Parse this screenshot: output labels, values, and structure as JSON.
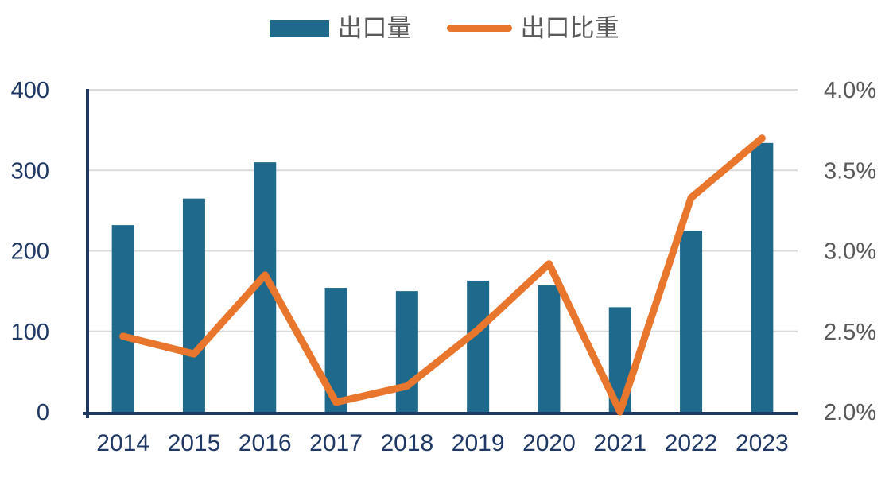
{
  "chart_data": {
    "type": "combo-bar-line",
    "title": "",
    "categories": [
      "2014",
      "2015",
      "2016",
      "2017",
      "2018",
      "2019",
      "2020",
      "2021",
      "2022",
      "2023"
    ],
    "series": [
      {
        "name": "出口量",
        "type": "bar",
        "axis": "left",
        "color": "#1F6A8C",
        "values": [
          232,
          265,
          310,
          154,
          150,
          163,
          157,
          130,
          225,
          334
        ]
      },
      {
        "name": "出口比重",
        "type": "line",
        "axis": "right",
        "color": "#E8762C",
        "values": [
          2.47,
          2.36,
          2.85,
          2.06,
          2.16,
          2.51,
          2.92,
          2.0,
          3.33,
          3.7
        ]
      }
    ],
    "left_axis": {
      "min": 0,
      "max": 400,
      "ticks": [
        0,
        100,
        200,
        300,
        400
      ],
      "tick_labels": [
        "0",
        "100",
        "200",
        "300",
        "400"
      ]
    },
    "right_axis": {
      "min": 2.0,
      "max": 4.0,
      "ticks": [
        2.0,
        2.5,
        3.0,
        3.5,
        4.0
      ],
      "tick_labels": [
        "2.0%",
        "2.5%",
        "3.0%",
        "3.5%",
        "4.0%"
      ]
    },
    "grid": true,
    "legend_position": "top"
  },
  "colors": {
    "bar_fill": "#1F6A8C",
    "line_stroke": "#E8762C",
    "axis_line": "#1F3864",
    "left_tick_text": "#1F3864",
    "right_tick_text": "#595959",
    "x_tick_text": "#1F3864",
    "gridline": "#D9D9D9",
    "legend_text": "#595959",
    "background": "#FFFFFF"
  }
}
